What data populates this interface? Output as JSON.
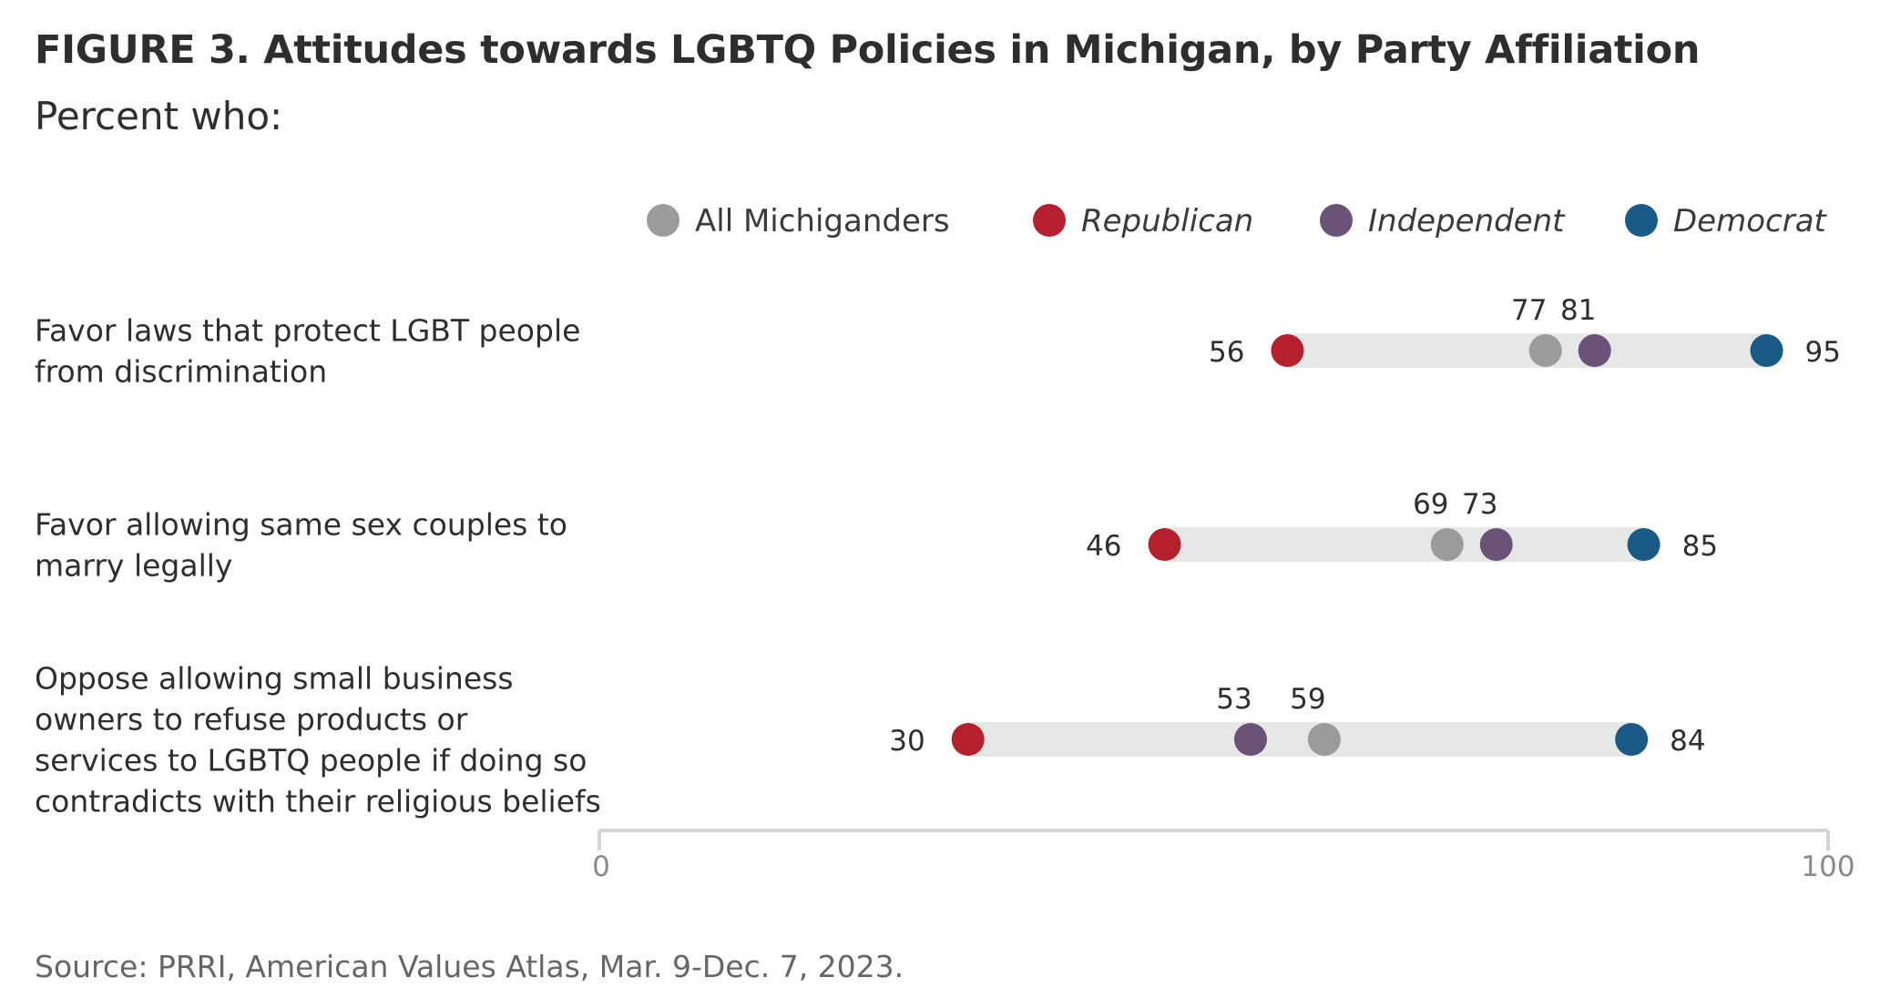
{
  "title": "FIGURE 3. Attitudes towards LGBTQ Policies in Michigan, by Party Affiliation",
  "subtitle": "Percent who:",
  "source": "Source: PRRI, American Values Atlas, Mar. 9-Dec. 7, 2023.",
  "chart_data": {
    "type": "dot-range",
    "xlim": [
      0,
      100
    ],
    "x_ticks": [
      "0",
      "100"
    ],
    "grid": false,
    "legend_position": "top",
    "series": [
      {
        "name": "All Michiganders",
        "color": "#9b9b9b",
        "italic": false,
        "values": [
          77,
          69,
          59
        ]
      },
      {
        "name": "Republican",
        "color": "#b5202e",
        "italic": true,
        "values": [
          56,
          46,
          30
        ]
      },
      {
        "name": "Independent",
        "color": "#6a5278",
        "italic": true,
        "values": [
          81,
          73,
          53
        ]
      },
      {
        "name": "Democrat",
        "color": "#1a5a87",
        "italic": true,
        "values": [
          95,
          85,
          84
        ]
      }
    ],
    "categories": [
      {
        "lines": [
          "Favor laws that protect LGBT people",
          "from discrimination"
        ]
      },
      {
        "lines": [
          "Favor allowing same sex couples to",
          "marry legally"
        ]
      },
      {
        "lines": [
          "Oppose allowing small business",
          "owners to refuse products or",
          "services to LGBTQ people if doing so",
          "contradicts with their religious beliefs"
        ]
      }
    ]
  }
}
